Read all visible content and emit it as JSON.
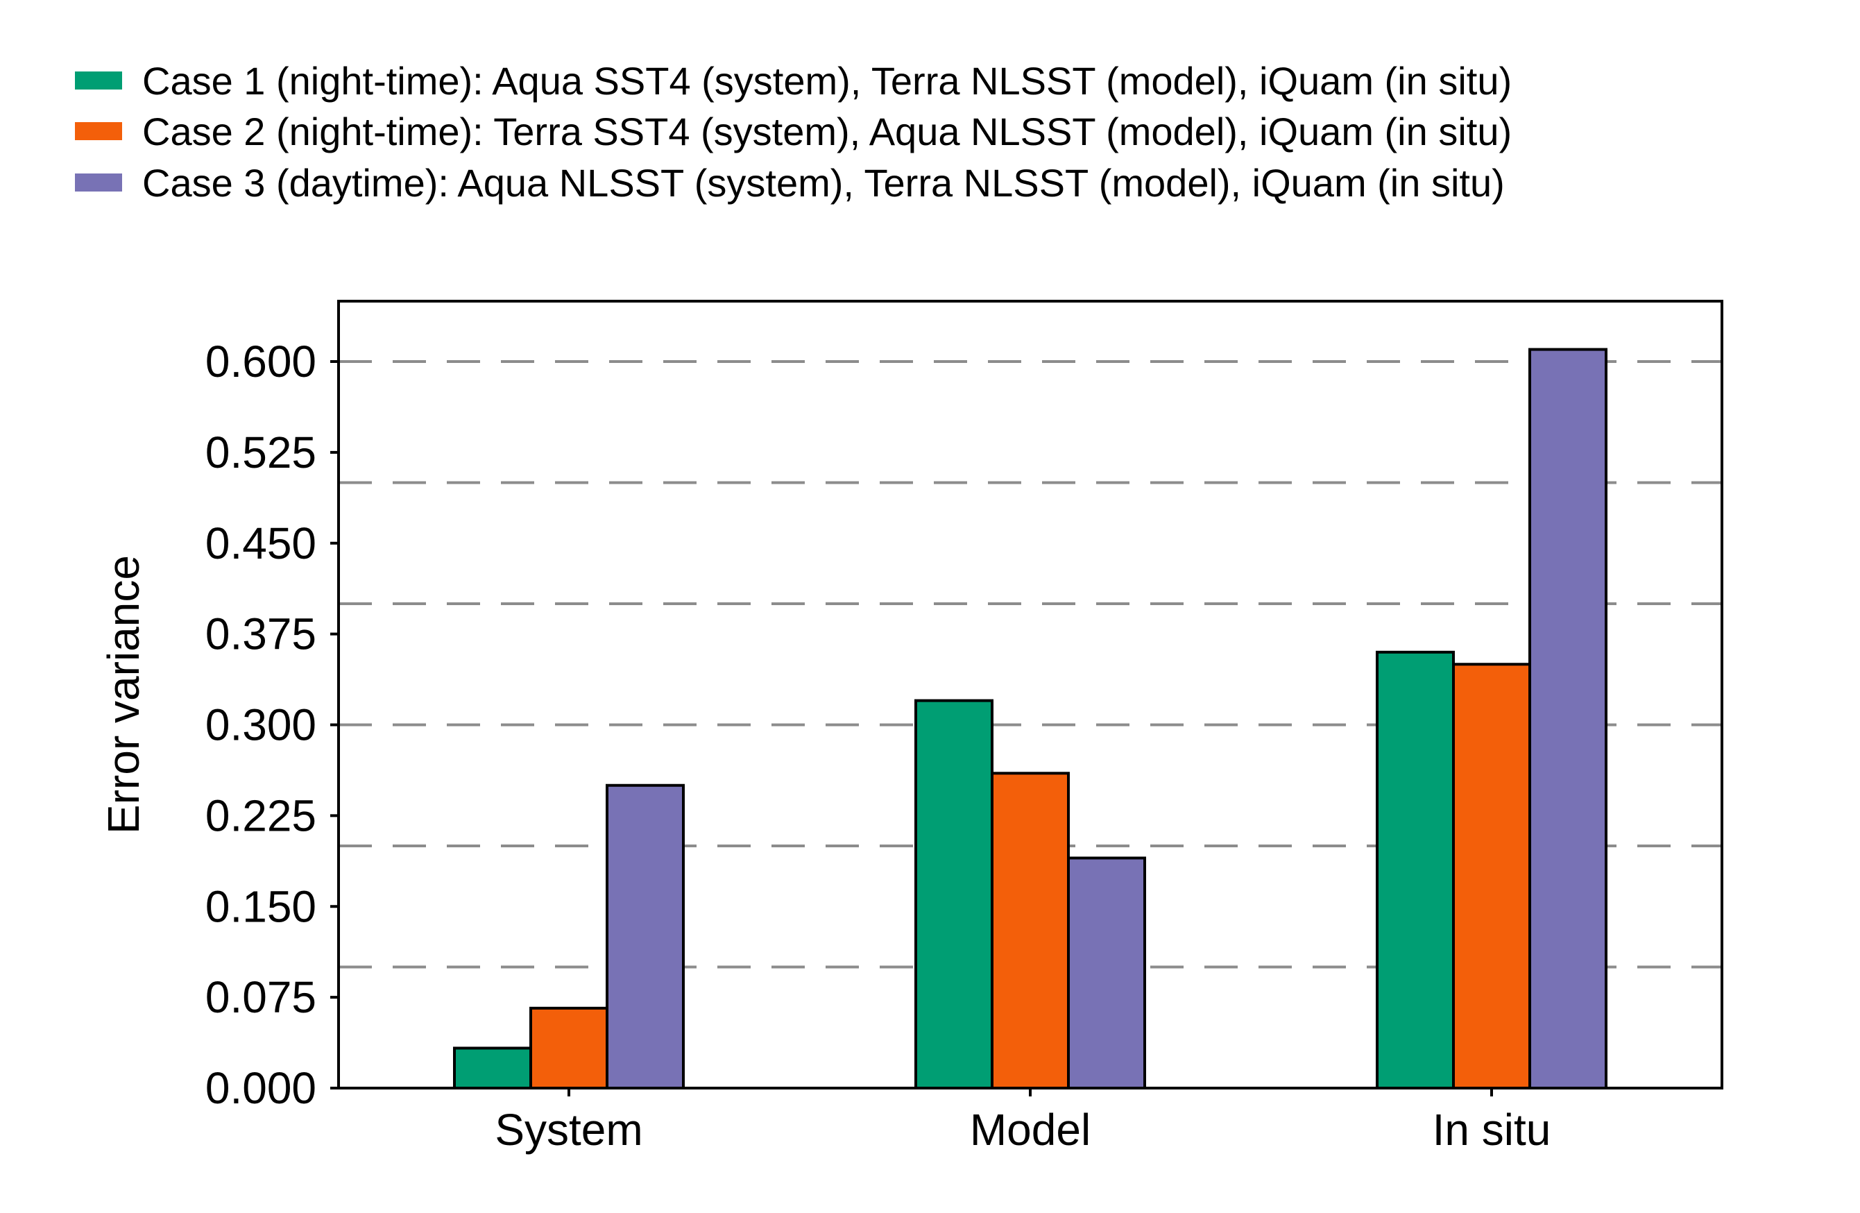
{
  "chart_data": {
    "type": "bar",
    "title": "",
    "xlabel": "",
    "ylabel": "Error variance",
    "ylim": [
      0,
      0.65
    ],
    "yticks": [
      "0.000",
      "0.075",
      "0.150",
      "0.225",
      "0.300",
      "0.375",
      "0.450",
      "0.525",
      "0.600"
    ],
    "ytick_values": [
      0,
      0.075,
      0.15,
      0.225,
      0.3,
      0.375,
      0.45,
      0.525,
      0.6
    ],
    "grid_values": [
      0.1,
      0.2,
      0.3,
      0.4,
      0.5,
      0.6
    ],
    "grid": "dashed horizontal",
    "legend_position": "top",
    "categories": [
      "System",
      "Model",
      "In situ"
    ],
    "series": [
      {
        "name": "Case 1 (night-time): Aqua SST4 (system), Terra NLSST (model), iQuam (in situ)",
        "color": "#009e73",
        "values": [
          0.033,
          0.32,
          0.36
        ]
      },
      {
        "name": "Case 2 (night-time): Terra SST4 (system), Aqua NLSST (model), iQuam (in situ)",
        "color": "#f35f0a",
        "values": [
          0.066,
          0.26,
          0.35
        ]
      },
      {
        "name": "Case 3 (daytime): Aqua NLSST (system), Terra NLSST (model), iQuam (in situ)",
        "color": "#7872b5",
        "values": [
          0.25,
          0.19,
          0.61
        ]
      }
    ]
  }
}
